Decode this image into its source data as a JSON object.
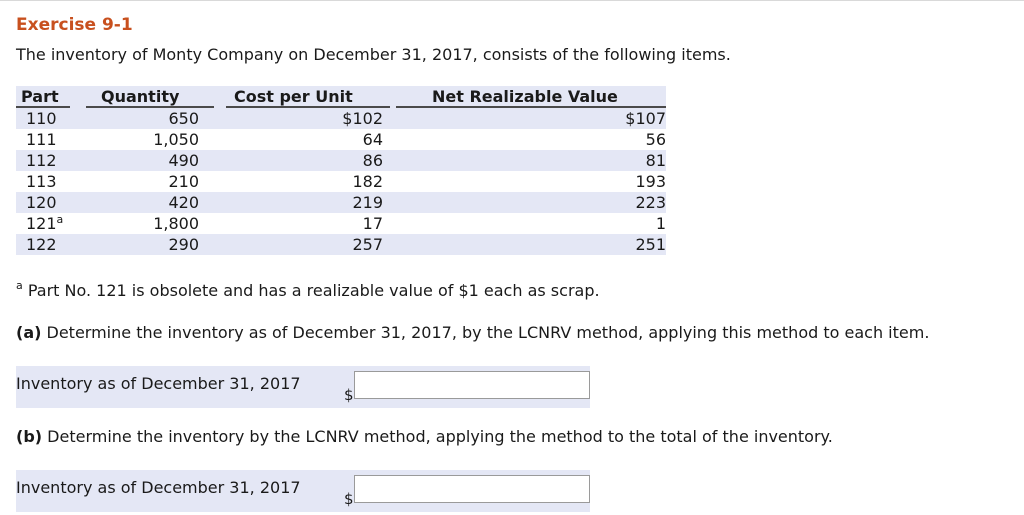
{
  "exercise": {
    "title": "Exercise 9-1",
    "intro": "The inventory of Monty Company on December 31, 2017, consists of the following items."
  },
  "table": {
    "headers": {
      "part": "Part",
      "quantity": "Quantity",
      "cost_per_unit": "Cost per Unit",
      "nrv": "Net Realizable Value"
    },
    "rows": [
      {
        "part": "110",
        "part_mark": "",
        "quantity": "650",
        "cost": "$102",
        "nrv": "$107"
      },
      {
        "part": "111",
        "part_mark": "",
        "quantity": "1,050",
        "cost": "64",
        "nrv": "56"
      },
      {
        "part": "112",
        "part_mark": "",
        "quantity": "490",
        "cost": "86",
        "nrv": "81"
      },
      {
        "part": "113",
        "part_mark": "",
        "quantity": "210",
        "cost": "182",
        "nrv": "193"
      },
      {
        "part": "120",
        "part_mark": "",
        "quantity": "420",
        "cost": "219",
        "nrv": "223"
      },
      {
        "part": "121",
        "part_mark": "a",
        "quantity": "1,800",
        "cost": "17",
        "nrv": "1"
      },
      {
        "part": "122",
        "part_mark": "",
        "quantity": "290",
        "cost": "257",
        "nrv": "251"
      }
    ]
  },
  "footnote": {
    "mark": "a",
    "text": "Part No. 121 is obsolete and has a realizable value of $1 each as scrap."
  },
  "part_a": {
    "label": "(a)",
    "question": "Determine the inventory as of December 31, 2017, by the LCNRV method, applying this method to each item.",
    "answer_label": "Inventory as of December 31, 2017",
    "currency": "$",
    "value": ""
  },
  "part_b": {
    "label": "(b)",
    "question": "Determine the inventory by the LCNRV method, applying the method to the total of the inventory.",
    "answer_label": "Inventory as of December 31, 2017",
    "currency": "$",
    "value": ""
  },
  "colors": {
    "title": "#c8501e",
    "band": "#e4e7f5"
  }
}
